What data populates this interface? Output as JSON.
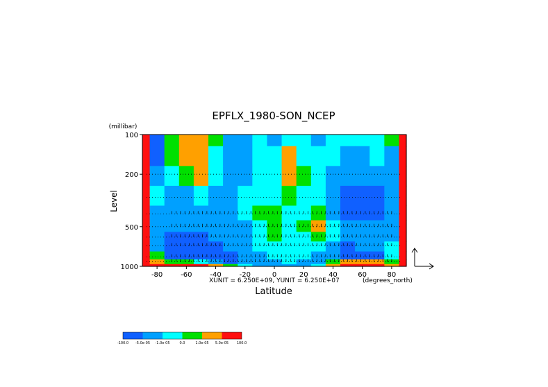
{
  "chart_data": {
    "type": "heatmap",
    "title": "EPFLX_1980-SON_NCEP",
    "ylabel": "Level",
    "yunit": "(millibar)",
    "xlabel": "Latitude",
    "xunit": "(degrees_north)",
    "scale_note": "XUNIT = 6.250E+09, YUNIT = 6.250E+07",
    "x_ticks": [
      "-80",
      "-60",
      "-40",
      "-20",
      "0",
      "20",
      "40",
      "60",
      "80"
    ],
    "x_tick_values": [
      -80,
      -60,
      -40,
      -20,
      0,
      20,
      40,
      60,
      80
    ],
    "y_ticks": [
      "100",
      "200",
      "500",
      "1000"
    ],
    "y_tick_values": [
      100,
      200,
      500,
      1000
    ],
    "xlim": [
      -90,
      90
    ],
    "ylim_mb": [
      1000,
      100
    ],
    "y_scale": "log",
    "legend": {
      "placement": "bottom-left",
      "colors": [
        "#1060ff",
        "#00a0ff",
        "#00ffff",
        "#00e000",
        "#ffa000",
        "#ff1010"
      ],
      "labels": [
        "-100.0",
        "-5.0e-05",
        "-1.0e-05",
        "0.0",
        "1.0e-05",
        "5.0e-05",
        "100.0"
      ]
    },
    "lats": [
      -90,
      -80,
      -70,
      -60,
      -50,
      -40,
      -30,
      -20,
      -10,
      0,
      10,
      20,
      30,
      40,
      50,
      60,
      70,
      80,
      90
    ],
    "levels_mb": [
      100,
      150,
      200,
      300,
      400,
      500,
      600,
      700,
      850,
      925,
      1000
    ],
    "class_grid": [
      [
        5,
        0,
        3,
        4,
        4,
        3,
        1,
        1,
        2,
        1,
        2,
        2,
        1,
        2,
        2,
        2,
        2,
        3,
        5
      ],
      [
        5,
        0,
        3,
        4,
        4,
        2,
        1,
        1,
        2,
        2,
        4,
        2,
        2,
        2,
        1,
        1,
        2,
        1,
        5
      ],
      [
        5,
        1,
        2,
        3,
        4,
        2,
        1,
        1,
        2,
        2,
        4,
        3,
        2,
        1,
        1,
        1,
        1,
        1,
        5
      ],
      [
        5,
        2,
        1,
        1,
        2,
        1,
        1,
        2,
        2,
        2,
        3,
        2,
        2,
        1,
        0,
        0,
        0,
        1,
        5
      ],
      [
        5,
        1,
        1,
        1,
        1,
        1,
        1,
        2,
        3,
        3,
        2,
        2,
        3,
        1,
        0,
        0,
        0,
        1,
        5
      ],
      [
        5,
        1,
        1,
        1,
        1,
        1,
        1,
        1,
        2,
        3,
        2,
        3,
        4,
        2,
        1,
        1,
        1,
        1,
        5
      ],
      [
        5,
        1,
        0,
        0,
        0,
        1,
        1,
        1,
        2,
        3,
        2,
        2,
        3,
        2,
        1,
        1,
        1,
        1,
        5
      ],
      [
        5,
        1,
        0,
        0,
        0,
        0,
        1,
        1,
        2,
        2,
        2,
        2,
        2,
        1,
        0,
        1,
        1,
        2,
        5
      ],
      [
        5,
        3,
        0,
        0,
        0,
        0,
        0,
        1,
        1,
        2,
        2,
        2,
        1,
        1,
        0,
        0,
        0,
        2,
        5
      ],
      [
        5,
        4,
        3,
        3,
        2,
        1,
        0,
        1,
        1,
        1,
        2,
        1,
        1,
        3,
        4,
        4,
        4,
        3,
        5
      ],
      [
        5,
        5,
        5,
        5,
        5,
        4,
        3,
        2,
        1,
        1,
        1,
        1,
        2,
        4,
        5,
        5,
        5,
        4,
        5
      ]
    ],
    "arrows": {
      "visible": true,
      "reference_vector": "bottom-right, outside plot"
    }
  }
}
